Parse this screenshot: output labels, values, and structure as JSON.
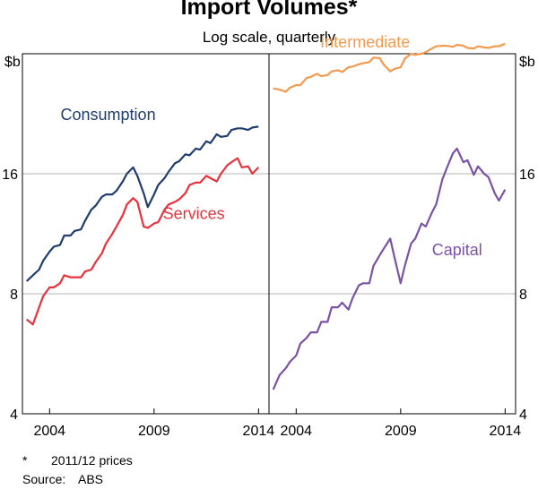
{
  "chart_data": {
    "type": "line",
    "title": "Import Volumes*",
    "subtitle": "Log scale, quarterly",
    "y_unit_left": "$b",
    "y_unit_right": "$b",
    "yscale": "log",
    "ylim": [
      4,
      32
    ],
    "yticks": [
      4,
      8,
      16
    ],
    "xlim": [
      2002.7,
      2014.5
    ],
    "xticks": [
      "2004",
      "2009",
      "2014"
    ],
    "grid": true,
    "panels": [
      {
        "name": "left",
        "series": [
          {
            "name": "Consumption",
            "color": "#1f3d6e",
            "points": [
              [
                2002.9,
                8.6
              ],
              [
                2003.2,
                8.9
              ],
              [
                2003.5,
                9.2
              ],
              [
                2003.7,
                9.7
              ],
              [
                2004.0,
                10.2
              ],
              [
                2004.2,
                10.5
              ],
              [
                2004.5,
                10.6
              ],
              [
                2004.7,
                11.2
              ],
              [
                2005.0,
                11.2
              ],
              [
                2005.2,
                11.5
              ],
              [
                2005.5,
                11.6
              ],
              [
                2005.7,
                12.2
              ],
              [
                2006.0,
                13.0
              ],
              [
                2006.2,
                13.3
              ],
              [
                2006.5,
                14.0
              ],
              [
                2006.7,
                14.2
              ],
              [
                2007.0,
                14.2
              ],
              [
                2007.2,
                14.5
              ],
              [
                2007.5,
                15.3
              ],
              [
                2007.7,
                16.0
              ],
              [
                2008.0,
                16.6
              ],
              [
                2008.2,
                15.8
              ],
              [
                2008.5,
                14.3
              ],
              [
                2008.7,
                13.2
              ],
              [
                2009.0,
                14.2
              ],
              [
                2009.2,
                15.0
              ],
              [
                2009.5,
                15.6
              ],
              [
                2009.7,
                16.2
              ],
              [
                2010.0,
                17.0
              ],
              [
                2010.2,
                17.2
              ],
              [
                2010.5,
                17.9
              ],
              [
                2010.7,
                17.8
              ],
              [
                2011.0,
                18.5
              ],
              [
                2011.2,
                18.4
              ],
              [
                2011.5,
                19.3
              ],
              [
                2011.7,
                19.1
              ],
              [
                2012.0,
                20.1
              ],
              [
                2012.2,
                19.8
              ],
              [
                2012.5,
                19.9
              ],
              [
                2012.7,
                20.6
              ],
              [
                2013.0,
                20.8
              ],
              [
                2013.2,
                20.8
              ],
              [
                2013.5,
                20.6
              ],
              [
                2013.7,
                20.9
              ],
              [
                2014.0,
                21.0
              ]
            ]
          },
          {
            "name": "Services",
            "color": "#e8323c",
            "points": [
              [
                2002.9,
                6.9
              ],
              [
                2003.2,
                6.7
              ],
              [
                2003.5,
                7.4
              ],
              [
                2003.7,
                7.9
              ],
              [
                2004.0,
                8.3
              ],
              [
                2004.2,
                8.3
              ],
              [
                2004.5,
                8.5
              ],
              [
                2004.7,
                8.9
              ],
              [
                2005.0,
                8.8
              ],
              [
                2005.2,
                8.8
              ],
              [
                2005.5,
                8.8
              ],
              [
                2005.7,
                9.1
              ],
              [
                2006.0,
                9.2
              ],
              [
                2006.2,
                9.6
              ],
              [
                2006.5,
                10.1
              ],
              [
                2006.7,
                10.7
              ],
              [
                2007.0,
                11.3
              ],
              [
                2007.2,
                11.8
              ],
              [
                2007.5,
                12.6
              ],
              [
                2007.7,
                13.4
              ],
              [
                2008.0,
                13.9
              ],
              [
                2008.2,
                13.6
              ],
              [
                2008.5,
                11.8
              ],
              [
                2008.7,
                11.7
              ],
              [
                2009.0,
                12.0
              ],
              [
                2009.2,
                12.1
              ],
              [
                2009.5,
                13.0
              ],
              [
                2009.7,
                13.4
              ],
              [
                2010.0,
                13.6
              ],
              [
                2010.2,
                13.8
              ],
              [
                2010.5,
                14.3
              ],
              [
                2010.7,
                15.0
              ],
              [
                2011.0,
                15.2
              ],
              [
                2011.2,
                15.2
              ],
              [
                2011.5,
                15.8
              ],
              [
                2011.7,
                15.6
              ],
              [
                2012.0,
                15.3
              ],
              [
                2012.2,
                16.0
              ],
              [
                2012.5,
                16.8
              ],
              [
                2012.7,
                17.1
              ],
              [
                2013.0,
                17.5
              ],
              [
                2013.2,
                16.6
              ],
              [
                2013.5,
                16.7
              ],
              [
                2013.7,
                16.0
              ],
              [
                2014.0,
                16.6
              ]
            ]
          }
        ]
      },
      {
        "name": "right",
        "series": [
          {
            "name": "Intermediate",
            "color": "#f39a4f",
            "points": [
              [
                2002.9,
                26.2
              ],
              [
                2003.2,
                26.0
              ],
              [
                2003.5,
                25.7
              ],
              [
                2003.7,
                26.3
              ],
              [
                2004.0,
                26.7
              ],
              [
                2004.2,
                26.7
              ],
              [
                2004.5,
                27.8
              ],
              [
                2004.7,
                28.0
              ],
              [
                2005.0,
                28.5
              ],
              [
                2005.2,
                28.1
              ],
              [
                2005.5,
                28.3
              ],
              [
                2005.7,
                28.9
              ],
              [
                2006.0,
                29.1
              ],
              [
                2006.2,
                28.8
              ],
              [
                2006.5,
                29.6
              ],
              [
                2006.7,
                29.7
              ],
              [
                2007.0,
                30.1
              ],
              [
                2007.2,
                30.3
              ],
              [
                2007.5,
                30.5
              ],
              [
                2007.7,
                31.3
              ],
              [
                2008.0,
                31.2
              ],
              [
                2008.2,
                30.0
              ],
              [
                2008.5,
                28.9
              ],
              [
                2008.7,
                29.3
              ],
              [
                2009.0,
                29.6
              ],
              [
                2009.2,
                31.1
              ],
              [
                2009.5,
                32.0
              ],
              [
                2009.7,
                31.8
              ],
              [
                2010.0,
                32.0
              ],
              [
                2010.2,
                32.3
              ],
              [
                2010.5,
                33.0
              ],
              [
                2010.7,
                33.4
              ],
              [
                2011.0,
                33.5
              ],
              [
                2011.2,
                33.5
              ],
              [
                2011.5,
                33.3
              ],
              [
                2011.7,
                33.7
              ],
              [
                2012.0,
                33.5
              ],
              [
                2012.2,
                33.1
              ],
              [
                2012.5,
                33.0
              ],
              [
                2012.7,
                33.4
              ],
              [
                2013.0,
                33.2
              ],
              [
                2013.2,
                33.1
              ],
              [
                2013.5,
                33.4
              ],
              [
                2013.7,
                33.4
              ],
              [
                2014.0,
                33.9
              ]
            ]
          },
          {
            "name": "Capital",
            "color": "#7a52a6",
            "points": [
              [
                2002.9,
                4.6
              ],
              [
                2003.2,
                5.0
              ],
              [
                2003.5,
                5.2
              ],
              [
                2003.7,
                5.4
              ],
              [
                2004.0,
                5.6
              ],
              [
                2004.2,
                6.0
              ],
              [
                2004.5,
                6.2
              ],
              [
                2004.7,
                6.4
              ],
              [
                2005.0,
                6.4
              ],
              [
                2005.2,
                6.8
              ],
              [
                2005.5,
                6.8
              ],
              [
                2005.7,
                7.4
              ],
              [
                2006.0,
                7.4
              ],
              [
                2006.2,
                7.6
              ],
              [
                2006.5,
                7.3
              ],
              [
                2006.7,
                7.8
              ],
              [
                2007.0,
                8.4
              ],
              [
                2007.2,
                8.5
              ],
              [
                2007.5,
                8.5
              ],
              [
                2007.7,
                9.4
              ],
              [
                2008.0,
                10.0
              ],
              [
                2008.2,
                10.4
              ],
              [
                2008.5,
                11.0
              ],
              [
                2008.7,
                9.9
              ],
              [
                2009.0,
                8.5
              ],
              [
                2009.2,
                9.4
              ],
              [
                2009.5,
                10.7
              ],
              [
                2009.7,
                11.0
              ],
              [
                2010.0,
                12.0
              ],
              [
                2010.2,
                11.8
              ],
              [
                2010.5,
                12.8
              ],
              [
                2010.7,
                13.4
              ],
              [
                2011.0,
                15.5
              ],
              [
                2011.2,
                16.5
              ],
              [
                2011.5,
                18.0
              ],
              [
                2011.7,
                18.5
              ],
              [
                2012.0,
                17.1
              ],
              [
                2012.2,
                17.3
              ],
              [
                2012.5,
                15.9
              ],
              [
                2012.7,
                16.7
              ],
              [
                2013.0,
                16.0
              ],
              [
                2013.2,
                15.7
              ],
              [
                2013.5,
                14.3
              ],
              [
                2013.7,
                13.7
              ],
              [
                2014.0,
                14.6
              ]
            ]
          }
        ]
      }
    ],
    "labels": [
      {
        "text": "Consumption",
        "color": "#1f3d6e",
        "panel": "left",
        "x": 2006.8,
        "y": 22.5
      },
      {
        "text": "Services",
        "color": "#e8323c",
        "panel": "left",
        "x": 2010.9,
        "y": 12.7
      },
      {
        "text": "Intermediate",
        "color": "#f39a4f",
        "panel": "right",
        "x": 2007.3,
        "y": 34.2
      },
      {
        "text": "Capital",
        "color": "#7a52a6",
        "panel": "right",
        "x": 2011.7,
        "y": 10.3
      }
    ]
  },
  "notes": {
    "note1_mark": "*",
    "note1_text": "2011/12 prices",
    "note2_mark": "Source:",
    "note2_text": "ABS"
  }
}
